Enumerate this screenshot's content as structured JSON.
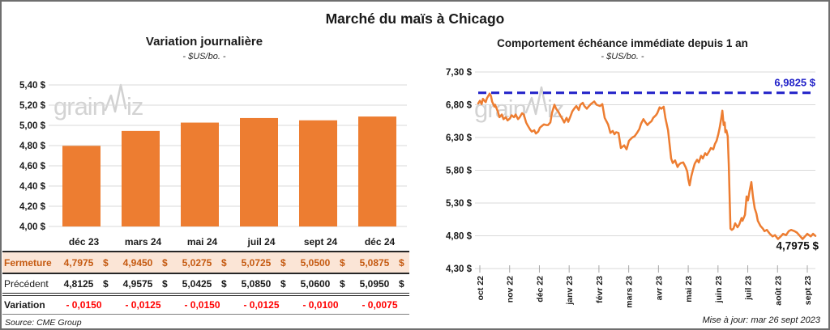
{
  "page": {
    "title": "Marché du maïs à Chicago",
    "source": "Source: CME Group",
    "updated": "Mise à jour: mar 26 sept 2023"
  },
  "watermark": {
    "part1": "grain",
    "part2": "iz"
  },
  "colors": {
    "orange": "#ED7D31",
    "fermeture_text": "#C55A11",
    "fermeture_bg": "#FBE5D6",
    "variation_red": "#FF0000",
    "ref_blue": "#2121C8",
    "grid": "#D9D9D9"
  },
  "left_chart": {
    "title": "Variation journalière",
    "subtitle": "- $US/bo. -"
  },
  "right_chart": {
    "title": "Comportement échéance immédiate depuis 1 an",
    "subtitle": "- $US/bo. -"
  },
  "table": {
    "columns": [
      "déc 23",
      "mars 24",
      "mai 24",
      "juil 24",
      "sept 24",
      "déc 24"
    ],
    "currency": "$",
    "rows": [
      {
        "label": "Fermeture",
        "style": "fermeture",
        "currency": true,
        "values": [
          "4,7975",
          "4,9450",
          "5,0275",
          "5,0725",
          "5,0500",
          "5,0875"
        ]
      },
      {
        "label": "Précédent",
        "style": "precedent",
        "currency": true,
        "values": [
          "4,8125",
          "4,9575",
          "5,0425",
          "5,0850",
          "5,0600",
          "5,0950"
        ]
      },
      {
        "label": "Variation",
        "style": "variation",
        "currency": false,
        "values": [
          "- 0,0150",
          "- 0,0125",
          "- 0,0150",
          "- 0,0125",
          "- 0,0100",
          "- 0,0075"
        ]
      }
    ]
  },
  "chart_data": [
    {
      "type": "bar",
      "title": "Variation journalière",
      "subtitle": "- $US/bo. -",
      "categories": [
        "déc 23",
        "mars 24",
        "mai 24",
        "juil 24",
        "sept 24",
        "déc 24"
      ],
      "values": [
        4.7975,
        4.945,
        5.0275,
        5.0725,
        5.05,
        5.0875
      ],
      "ylim": [
        4.0,
        5.4
      ],
      "yticks": [
        5.4,
        5.2,
        5.0,
        4.8,
        4.6,
        4.4,
        4.2,
        4.0
      ],
      "ytick_labels": [
        "5,40 $",
        "5,20 $",
        "5,00 $",
        "4,80 $",
        "4,60 $",
        "4,40 $",
        "4,20 $",
        "4,00 $"
      ],
      "bar_color": "#ED7D31",
      "grid": true,
      "legend": "none"
    },
    {
      "type": "line",
      "title": "Comportement échéance immédiate depuis 1 an",
      "subtitle": "- $US/bo. -",
      "x_labels": [
        "oct 22",
        "nov 22",
        "déc 22",
        "janv 23",
        "févr 23",
        "mars 23",
        "avr 23",
        "mai 23",
        "juin 23",
        "juil 23",
        "août 23",
        "sept 23"
      ],
      "ylim": [
        4.3,
        7.3
      ],
      "yticks": [
        7.3,
        6.8,
        6.3,
        5.8,
        5.3,
        4.8,
        4.3
      ],
      "ytick_labels": [
        "7,30 $",
        "6,80 $",
        "6,30 $",
        "5,80 $",
        "5,30 $",
        "4,80 $",
        "4,30 $"
      ],
      "line_color": "#ED7D31",
      "ref_line": {
        "value": 6.9825,
        "label": "6,9825 $",
        "color": "#2121C8",
        "style": "dashed"
      },
      "last_point": {
        "value": 4.7975,
        "label": "4,7975 $"
      },
      "grid": true,
      "points": [
        [
          0.0,
          6.82
        ],
        [
          0.005,
          6.86
        ],
        [
          0.01,
          6.81
        ],
        [
          0.014,
          6.89
        ],
        [
          0.022,
          6.84
        ],
        [
          0.026,
          6.9
        ],
        [
          0.034,
          6.97
        ],
        [
          0.038,
          6.93
        ],
        [
          0.041,
          6.85
        ],
        [
          0.048,
          6.77
        ],
        [
          0.05,
          6.8
        ],
        [
          0.058,
          6.7
        ],
        [
          0.063,
          6.61
        ],
        [
          0.07,
          6.65
        ],
        [
          0.075,
          6.58
        ],
        [
          0.082,
          6.61
        ],
        [
          0.087,
          6.56
        ],
        [
          0.094,
          6.59
        ],
        [
          0.099,
          6.64
        ],
        [
          0.106,
          6.61
        ],
        [
          0.111,
          6.65
        ],
        [
          0.118,
          6.58
        ],
        [
          0.123,
          6.61
        ],
        [
          0.13,
          6.67
        ],
        [
          0.135,
          6.65
        ],
        [
          0.142,
          6.53
        ],
        [
          0.147,
          6.48
        ],
        [
          0.154,
          6.42
        ],
        [
          0.159,
          6.39
        ],
        [
          0.166,
          6.41
        ],
        [
          0.171,
          6.36
        ],
        [
          0.178,
          6.39
        ],
        [
          0.183,
          6.45
        ],
        [
          0.19,
          6.48
        ],
        [
          0.195,
          6.5
        ],
        [
          0.202,
          6.49
        ],
        [
          0.207,
          6.49
        ],
        [
          0.214,
          6.53
        ],
        [
          0.219,
          6.68
        ],
        [
          0.226,
          6.8
        ],
        [
          0.231,
          6.74
        ],
        [
          0.238,
          6.69
        ],
        [
          0.243,
          6.64
        ],
        [
          0.25,
          6.58
        ],
        [
          0.255,
          6.53
        ],
        [
          0.262,
          6.6
        ],
        [
          0.267,
          6.54
        ],
        [
          0.274,
          6.63
        ],
        [
          0.279,
          6.7
        ],
        [
          0.286,
          6.75
        ],
        [
          0.291,
          6.78
        ],
        [
          0.298,
          6.72
        ],
        [
          0.303,
          6.8
        ],
        [
          0.31,
          6.83
        ],
        [
          0.315,
          6.78
        ],
        [
          0.322,
          6.74
        ],
        [
          0.327,
          6.77
        ],
        [
          0.334,
          6.81
        ],
        [
          0.344,
          6.85
        ],
        [
          0.351,
          6.8
        ],
        [
          0.361,
          6.78
        ],
        [
          0.368,
          6.81
        ],
        [
          0.375,
          6.6
        ],
        [
          0.385,
          6.5
        ],
        [
          0.392,
          6.37
        ],
        [
          0.399,
          6.4
        ],
        [
          0.404,
          6.35
        ],
        [
          0.409,
          6.38
        ],
        [
          0.416,
          6.37
        ],
        [
          0.423,
          6.14
        ],
        [
          0.433,
          6.18
        ],
        [
          0.44,
          6.12
        ],
        [
          0.447,
          6.25
        ],
        [
          0.457,
          6.3
        ],
        [
          0.464,
          6.32
        ],
        [
          0.471,
          6.37
        ],
        [
          0.478,
          6.43
        ],
        [
          0.483,
          6.51
        ],
        [
          0.49,
          6.58
        ],
        [
          0.495,
          6.54
        ],
        [
          0.502,
          6.49
        ],
        [
          0.507,
          6.52
        ],
        [
          0.514,
          6.55
        ],
        [
          0.519,
          6.6
        ],
        [
          0.527,
          6.64
        ],
        [
          0.531,
          6.67
        ],
        [
          0.538,
          6.76
        ],
        [
          0.543,
          6.74
        ],
        [
          0.55,
          6.77
        ],
        [
          0.555,
          6.6
        ],
        [
          0.563,
          6.41
        ],
        [
          0.567,
          6.22
        ],
        [
          0.572,
          5.98
        ],
        [
          0.577,
          5.91
        ],
        [
          0.584,
          5.95
        ],
        [
          0.591,
          5.85
        ],
        [
          0.596,
          5.89
        ],
        [
          0.601,
          5.91
        ],
        [
          0.608,
          5.92
        ],
        [
          0.615,
          5.85
        ],
        [
          0.62,
          5.78
        ],
        [
          0.623,
          5.66
        ],
        [
          0.627,
          5.57
        ],
        [
          0.632,
          5.71
        ],
        [
          0.637,
          5.81
        ],
        [
          0.642,
          5.9
        ],
        [
          0.649,
          5.96
        ],
        [
          0.654,
          5.92
        ],
        [
          0.661,
          6.02
        ],
        [
          0.666,
          5.98
        ],
        [
          0.673,
          6.06
        ],
        [
          0.678,
          6.03
        ],
        [
          0.685,
          6.09
        ],
        [
          0.69,
          6.14
        ],
        [
          0.697,
          6.12
        ],
        [
          0.702,
          6.2
        ],
        [
          0.707,
          6.25
        ],
        [
          0.712,
          6.35
        ],
        [
          0.716,
          6.45
        ],
        [
          0.721,
          6.6
        ],
        [
          0.724,
          6.71
        ],
        [
          0.728,
          6.49
        ],
        [
          0.731,
          6.53
        ],
        [
          0.733,
          6.38
        ],
        [
          0.736,
          6.41
        ],
        [
          0.74,
          6.32
        ],
        [
          0.743,
          5.89
        ],
        [
          0.748,
          4.91
        ],
        [
          0.752,
          4.89
        ],
        [
          0.757,
          4.91
        ],
        [
          0.762,
          4.99
        ],
        [
          0.769,
          4.93
        ],
        [
          0.774,
          4.97
        ],
        [
          0.781,
          5.07
        ],
        [
          0.784,
          5.03
        ],
        [
          0.791,
          5.12
        ],
        [
          0.796,
          5.4
        ],
        [
          0.8,
          5.34
        ],
        [
          0.805,
          5.49
        ],
        [
          0.81,
          5.62
        ],
        [
          0.815,
          5.39
        ],
        [
          0.82,
          5.22
        ],
        [
          0.825,
          5.14
        ],
        [
          0.829,
          5.03
        ],
        [
          0.837,
          4.95
        ],
        [
          0.844,
          4.91
        ],
        [
          0.849,
          4.87
        ],
        [
          0.856,
          4.89
        ],
        [
          0.865,
          4.83
        ],
        [
          0.873,
          4.79
        ],
        [
          0.88,
          4.81
        ],
        [
          0.889,
          4.75
        ],
        [
          0.897,
          4.79
        ],
        [
          0.904,
          4.83
        ],
        [
          0.913,
          4.81
        ],
        [
          0.921,
          4.87
        ],
        [
          0.928,
          4.89
        ],
        [
          0.938,
          4.87
        ],
        [
          0.945,
          4.85
        ],
        [
          0.952,
          4.81
        ],
        [
          0.962,
          4.75
        ],
        [
          0.969,
          4.79
        ],
        [
          0.976,
          4.83
        ],
        [
          0.986,
          4.79
        ],
        [
          0.993,
          4.83
        ],
        [
          1.0,
          4.7975
        ]
      ]
    }
  ]
}
